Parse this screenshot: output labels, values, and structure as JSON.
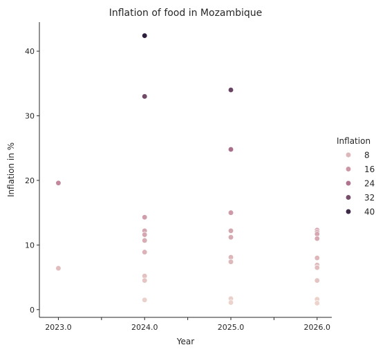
{
  "chart_data": {
    "type": "scatter",
    "title": "Inflation of food in Mozambique",
    "xlabel": "Year",
    "ylabel": "Inflation in %",
    "xlim": [
      2022.78,
      2026.17
    ],
    "ylim": [
      -1.2,
      44.5
    ],
    "xticks": [
      2023.0,
      2023.5,
      2024.0,
      2024.5,
      2025.0,
      2025.5,
      2026.0
    ],
    "xtick_labels": [
      "2023.0",
      "",
      "2024.0",
      "",
      "2025.0",
      "",
      "2026.0"
    ],
    "yticks": [
      0,
      10,
      20,
      30,
      40
    ],
    "ytick_labels": [
      "0",
      "10",
      "20",
      "30",
      "40"
    ],
    "grid": false,
    "legend": {
      "title": "Inflation",
      "placement": "right",
      "entries": [
        {
          "label": "8",
          "value": 8
        },
        {
          "label": "16",
          "value": 16
        },
        {
          "label": "24",
          "value": 24
        },
        {
          "label": "32",
          "value": 32
        },
        {
          "label": "40",
          "value": 40
        }
      ]
    },
    "hue": {
      "min": 1.0,
      "max": 42.4,
      "color_low": "#ecd3cc",
      "color_mid": "#c07f98",
      "color_high": "#2d1e3e"
    },
    "points": [
      {
        "x": 2023.0,
        "y": 19.6
      },
      {
        "x": 2023.0,
        "y": 6.4
      },
      {
        "x": 2024.0,
        "y": 42.4
      },
      {
        "x": 2024.0,
        "y": 33.0
      },
      {
        "x": 2024.0,
        "y": 14.3
      },
      {
        "x": 2024.0,
        "y": 12.2
      },
      {
        "x": 2024.0,
        "y": 11.6
      },
      {
        "x": 2024.0,
        "y": 10.7
      },
      {
        "x": 2024.0,
        "y": 8.9
      },
      {
        "x": 2024.0,
        "y": 5.2
      },
      {
        "x": 2024.0,
        "y": 4.5
      },
      {
        "x": 2024.0,
        "y": 1.5
      },
      {
        "x": 2025.0,
        "y": 34.0
      },
      {
        "x": 2025.0,
        "y": 24.8
      },
      {
        "x": 2025.0,
        "y": 15.0
      },
      {
        "x": 2025.0,
        "y": 12.2
      },
      {
        "x": 2025.0,
        "y": 11.2
      },
      {
        "x": 2025.0,
        "y": 8.1
      },
      {
        "x": 2025.0,
        "y": 7.4
      },
      {
        "x": 2025.0,
        "y": 1.7
      },
      {
        "x": 2025.0,
        "y": 1.1
      },
      {
        "x": 2026.0,
        "y": 12.3
      },
      {
        "x": 2026.0,
        "y": 12.0
      },
      {
        "x": 2026.0,
        "y": 11.7
      },
      {
        "x": 2026.0,
        "y": 11.0
      },
      {
        "x": 2026.0,
        "y": 8.0
      },
      {
        "x": 2026.0,
        "y": 6.9
      },
      {
        "x": 2026.0,
        "y": 6.5
      },
      {
        "x": 2026.0,
        "y": 4.5
      },
      {
        "x": 2026.0,
        "y": 1.6
      },
      {
        "x": 2026.0,
        "y": 1.0
      }
    ]
  }
}
